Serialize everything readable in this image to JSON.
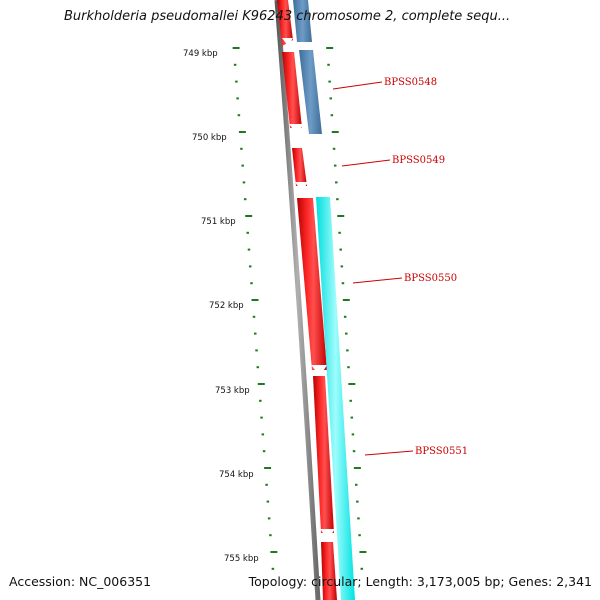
{
  "title": "Burkholderia pseudomallei K96243 chromosome 2, complete sequ...",
  "footer": {
    "accession": "Accession: NC_006351",
    "summary": "Topology: circular; Length: 3,173,005 bp; Genes: 2,341"
  },
  "scale_labels": [
    "749 kbp",
    "750 kbp",
    "751 kbp",
    "752 kbp",
    "753 kbp",
    "754 kbp",
    "755 kbp"
  ],
  "gene_labels": [
    "BPSS0548",
    "BPSS0549",
    "BPSS0550",
    "BPSS0551"
  ],
  "colors": {
    "backbone": "#808080",
    "cds": "#ff0000",
    "gene_strand_a": "#4682b4",
    "gene_strand_b": "#00ffff",
    "ticks": "#1f7a1f",
    "labels": "#cc0000"
  }
}
